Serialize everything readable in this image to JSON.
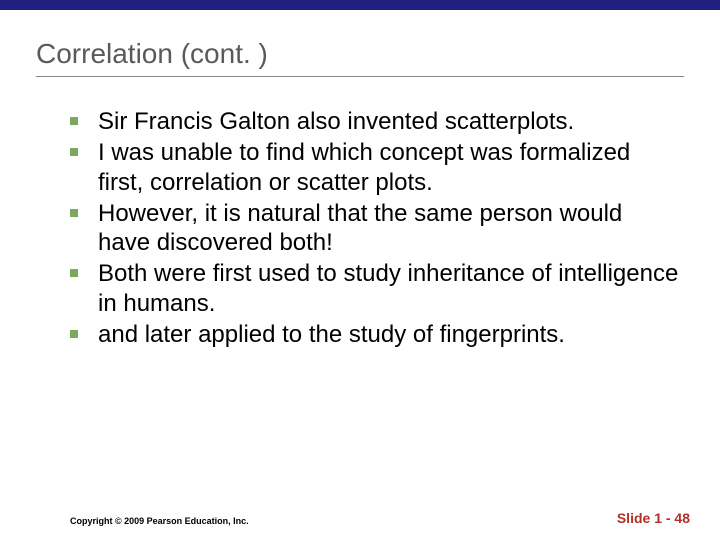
{
  "colors": {
    "top_bar": "#202080",
    "title_text": "#5a5a5a",
    "underline": "#888888",
    "bullet_square": "#7aa860",
    "body_text": "#000000",
    "slide_number": "#b03028",
    "background": "#ffffff"
  },
  "typography": {
    "title_fontsize": 28,
    "body_fontsize": 24,
    "copyright_fontsize": 9,
    "slidenum_fontsize": 14,
    "font_family": "Arial"
  },
  "title": "Correlation (cont. )",
  "bullets": [
    "Sir Francis Galton also invented scatterplots.",
    "I was unable to find which concept was formalized first, correlation or scatter plots.",
    "However, it is natural that the same person would have discovered both!",
    "Both were first used to study inheritance of intelligence in humans.",
    "and later applied to the study of fingerprints."
  ],
  "footer": {
    "copyright": "Copyright © 2009 Pearson Education, Inc.",
    "slide_number": "Slide 1 - 48"
  }
}
